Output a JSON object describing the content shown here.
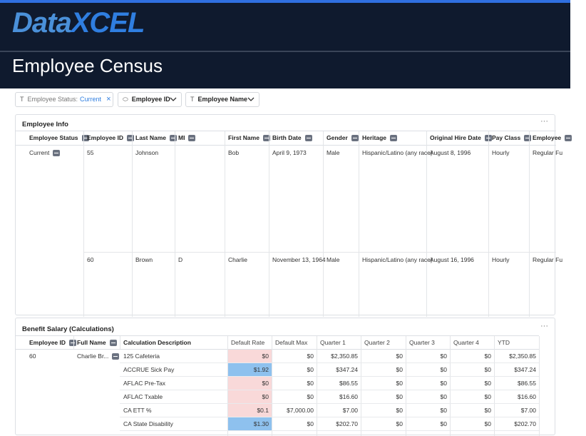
{
  "header": {
    "logo": [
      "Data",
      "XCEL"
    ],
    "title": "Employee Census"
  },
  "filters": [
    {
      "label": "Employee Status:",
      "value": "Current"
    },
    {
      "label": "Employee ID"
    },
    {
      "label": "Employee Name"
    }
  ],
  "employee_info": {
    "title": "Employee Info",
    "columns": [
      "Employee Status",
      "Employee ID",
      "Last Name",
      "MI",
      "First Name",
      "Birth Date",
      "Gender",
      "Heritage",
      "Original Hire Date",
      "Pay Class",
      "Employee"
    ],
    "status": "Current",
    "rows": [
      [
        "55",
        "Johnson",
        null,
        "Bob",
        "April 9, 1973",
        "Male",
        "Hispanic/Latino (any race)",
        "August 8, 1996",
        "Hourly",
        "Regular Fu"
      ],
      [
        "60",
        "Brown",
        "D",
        "Charlie",
        "November 13, 1964",
        "Male",
        "Hispanic/Latino (any race)",
        "August 16, 1996",
        "Hourly",
        "Regular Fu"
      ]
    ]
  },
  "benefit_salary": {
    "title": "Benefit Salary (Calculations)",
    "columns": [
      "Employee ID",
      "Full Name",
      "Calculation Description",
      "Default Rate",
      "Default Max",
      "Quarter 1",
      "Quarter 2",
      "Quarter 3",
      "Quarter 4",
      "YTD"
    ],
    "employee_id": "60",
    "full_name": "Charlie Br...",
    "rows": [
      {
        "cells": [
          "125 Cafeteria",
          "$0",
          "$0",
          "$2,350.85",
          "$0",
          "$0",
          "$0",
          "$2,350.85"
        ],
        "highlight": "pink"
      },
      {
        "cells": [
          "ACCRUE Sick Pay",
          "$1.92",
          "$0",
          "$347.24",
          "$0",
          "$0",
          "$0",
          "$347.24"
        ],
        "highlight": "blue"
      },
      {
        "cells": [
          "AFLAC Pre-Tax",
          "$0",
          "$0",
          "$86.55",
          "$0",
          "$0",
          "$0",
          "$86.55"
        ],
        "highlight": "pink"
      },
      {
        "cells": [
          "AFLAC Txable",
          "$0",
          "$0",
          "$16.60",
          "$0",
          "$0",
          "$0",
          "$16.60"
        ],
        "highlight": "pink"
      },
      {
        "cells": [
          "CA ETT %",
          "$0.1",
          "$7,000.00",
          "$7.00",
          "$0",
          "$0",
          "$0",
          "$7.00"
        ],
        "highlight": "pink"
      },
      {
        "cells": [
          "CA State Disability",
          "$1.30",
          "$0",
          "$202.70",
          "$0",
          "$0",
          "$0",
          "$202.70"
        ],
        "highlight": "blue"
      }
    ]
  }
}
